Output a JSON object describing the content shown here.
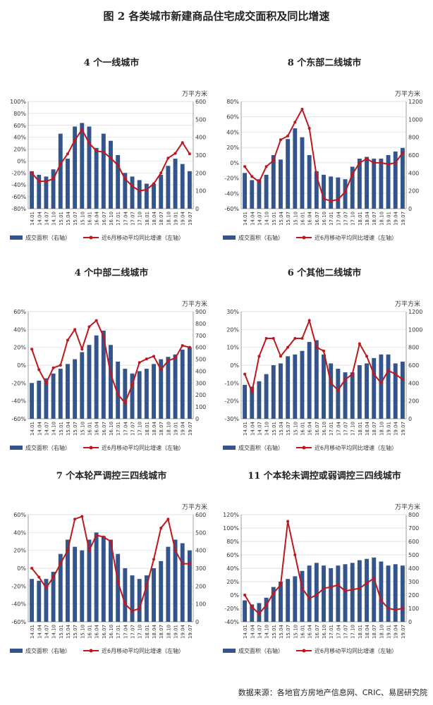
{
  "figure": {
    "title": "图 2   各类城市新建商品住宅成交面积及同比增速",
    "source": "数据来源：各地官方房地产信息网、CRIC、易居研究院"
  },
  "x_ticks": [
    "14.01",
    "14.04",
    "14.07",
    "14.10",
    "15.01",
    "15.04",
    "15.07",
    "15.10",
    "16.01",
    "16.04",
    "16.07",
    "16.10",
    "17.01",
    "17.04",
    "17.07",
    "17.10",
    "18.01",
    "18.04",
    "18.07",
    "18.10",
    "19.01",
    "19.04",
    "19.07"
  ],
  "legend": {
    "bar": "成交面积（右轴）",
    "line": "近6月移动平均同比增速（左轴）"
  },
  "right_unit": "万平方米",
  "colors": {
    "bar": "#34558b",
    "line": "#c0161e",
    "grid": "#d9d9d9"
  },
  "chart_data": [
    {
      "type": "bar+line",
      "title": "4 个一线城市",
      "x": [
        "14.01",
        "14.04",
        "14.07",
        "14.10",
        "15.01",
        "15.04",
        "15.07",
        "15.10",
        "16.01",
        "16.04",
        "16.07",
        "16.10",
        "17.01",
        "17.04",
        "17.07",
        "17.10",
        "18.01",
        "18.04",
        "18.07",
        "18.10",
        "19.01",
        "19.04",
        "19.07"
      ],
      "bar_values": [
        210,
        190,
        180,
        220,
        420,
        280,
        460,
        480,
        460,
        340,
        420,
        380,
        300,
        200,
        180,
        160,
        140,
        140,
        190,
        240,
        280,
        250,
        210
      ],
      "line_values": [
        -20,
        -34,
        -34,
        -30,
        -5,
        12,
        35,
        53,
        30,
        17,
        15,
        5,
        -7,
        -30,
        -42,
        -50,
        -48,
        -38,
        -20,
        5,
        13,
        31,
        12
      ],
      "ylim_left": [
        -80,
        100
      ],
      "ylim_right": [
        0,
        600
      ],
      "left_ticks": [
        "-80%",
        "-60%",
        "-40%",
        "-20%",
        "0%",
        "20%",
        "40%",
        "60%",
        "80%",
        "100%"
      ],
      "right_ticks": [
        "0",
        "100",
        "200",
        "300",
        "400",
        "500",
        "600"
      ]
    },
    {
      "type": "bar+line",
      "title": "8 个东部二线城市",
      "x": [
        "14.01",
        "14.04",
        "14.07",
        "14.10",
        "15.01",
        "15.04",
        "15.07",
        "15.10",
        "16.01",
        "16.04",
        "16.07",
        "16.10",
        "17.01",
        "17.04",
        "17.07",
        "17.10",
        "18.01",
        "18.04",
        "18.07",
        "18.10",
        "19.01",
        "19.04",
        "19.07"
      ],
      "bar_values": [
        400,
        320,
        330,
        380,
        600,
        550,
        780,
        900,
        800,
        600,
        420,
        380,
        360,
        350,
        330,
        470,
        560,
        580,
        560,
        560,
        600,
        640,
        680
      ],
      "line_values": [
        -5,
        -18,
        -25,
        -5,
        3,
        30,
        35,
        53,
        70,
        45,
        -17,
        -47,
        -50,
        -48,
        -38,
        -15,
        0,
        5,
        0,
        0,
        -2,
        0,
        13
      ],
      "ylim_left": [
        -60,
        80
      ],
      "ylim_right": [
        0,
        1200
      ],
      "left_ticks": [
        "-60%",
        "-40%",
        "-20%",
        "0%",
        "20%",
        "40%",
        "60%",
        "80%"
      ],
      "right_ticks": [
        "0",
        "200",
        "400",
        "600",
        "800",
        "1000",
        "1200"
      ]
    },
    {
      "type": "bar+line",
      "title": "4 个中部二线城市",
      "x": [
        "14.01",
        "14.04",
        "14.07",
        "14.10",
        "15.01",
        "15.04",
        "15.07",
        "15.10",
        "16.01",
        "16.04",
        "16.07",
        "16.10",
        "17.01",
        "17.04",
        "17.07",
        "17.10",
        "18.01",
        "18.04",
        "18.07",
        "18.10",
        "19.01",
        "19.04",
        "19.07"
      ],
      "bar_values": [
        300,
        320,
        340,
        380,
        420,
        460,
        500,
        560,
        620,
        700,
        740,
        620,
        480,
        420,
        380,
        400,
        420,
        460,
        500,
        520,
        540,
        580,
        600
      ],
      "line_values": [
        18,
        -5,
        -20,
        -3,
        0,
        28,
        40,
        18,
        43,
        50,
        32,
        -10,
        -33,
        -42,
        -22,
        3,
        7,
        10,
        -5,
        5,
        8,
        22,
        20
      ],
      "ylim_left": [
        -60,
        60
      ],
      "ylim_right": [
        0,
        900
      ],
      "left_ticks": [
        "-60%",
        "-40%",
        "-20%",
        "0%",
        "20%",
        "40%",
        "60%"
      ],
      "right_ticks": [
        "0",
        "100",
        "200",
        "300",
        "400",
        "500",
        "600",
        "700",
        "800",
        "900"
      ]
    },
    {
      "type": "bar+line",
      "title": "6 个其他二线城市",
      "x": [
        "14.01",
        "14.04",
        "14.07",
        "14.10",
        "15.01",
        "15.04",
        "15.07",
        "15.10",
        "16.01",
        "16.04",
        "16.07",
        "16.10",
        "17.01",
        "17.04",
        "17.07",
        "17.10",
        "18.01",
        "18.04",
        "18.07",
        "18.10",
        "19.01",
        "19.04",
        "19.07"
      ],
      "bar_values": [
        380,
        360,
        420,
        500,
        600,
        620,
        700,
        720,
        760,
        860,
        880,
        720,
        620,
        560,
        520,
        520,
        600,
        620,
        680,
        720,
        720,
        620,
        640
      ],
      "line_values": [
        -5,
        -15,
        5,
        15,
        15,
        5,
        10,
        15,
        15,
        25,
        10,
        8,
        -10,
        -14,
        -8,
        -5,
        12,
        5,
        -5,
        -10,
        -3,
        -5,
        -8
      ],
      "ylim_left": [
        -30,
        30
      ],
      "ylim_right": [
        0,
        1200
      ],
      "left_ticks": [
        "-30%",
        "-20%",
        "-10%",
        "0%",
        "10%",
        "20%",
        "30%"
      ],
      "right_ticks": [
        "0",
        "200",
        "400",
        "600",
        "800",
        "1000",
        "1200"
      ]
    },
    {
      "type": "bar+line",
      "title": "7 个本轮严调控三四线城市",
      "x": [
        "14.01",
        "14.04",
        "14.07",
        "14.10",
        "15.01",
        "15.04",
        "15.07",
        "15.10",
        "16.01",
        "16.04",
        "16.07",
        "16.10",
        "17.01",
        "17.04",
        "17.07",
        "17.10",
        "18.01",
        "18.04",
        "18.07",
        "18.10",
        "19.01",
        "19.04",
        "19.07"
      ],
      "bar_values": [
        240,
        230,
        240,
        280,
        380,
        460,
        420,
        400,
        460,
        500,
        480,
        460,
        380,
        300,
        260,
        240,
        260,
        300,
        340,
        420,
        460,
        440,
        400
      ],
      "line_values": [
        0,
        -10,
        -22,
        -10,
        5,
        20,
        55,
        58,
        20,
        37,
        35,
        30,
        -15,
        -40,
        -48,
        -45,
        -20,
        10,
        45,
        55,
        20,
        5,
        5
      ],
      "ylim_left": [
        -60,
        60
      ],
      "ylim_right": [
        0,
        600
      ],
      "left_ticks": [
        "-60%",
        "-40%",
        "-20%",
        "0%",
        "20%",
        "40%",
        "60%"
      ],
      "right_ticks": [
        "0",
        "100",
        "200",
        "300",
        "400",
        "500",
        "600"
      ]
    },
    {
      "type": "bar+line",
      "title": "11 个本轮未调控或弱调控三四线城市",
      "x": [
        "14.01",
        "14.04",
        "14.07",
        "14.10",
        "15.01",
        "15.04",
        "15.07",
        "15.10",
        "16.01",
        "16.04",
        "16.07",
        "16.10",
        "17.01",
        "17.04",
        "17.07",
        "17.10",
        "18.01",
        "18.04",
        "18.07",
        "18.10",
        "19.01",
        "19.04",
        "19.07"
      ],
      "bar_values": [
        160,
        130,
        140,
        180,
        260,
        300,
        320,
        340,
        380,
        420,
        440,
        420,
        400,
        420,
        430,
        440,
        460,
        470,
        480,
        450,
        420,
        430,
        420
      ],
      "line_values": [
        0,
        -18,
        -28,
        -15,
        3,
        15,
        110,
        60,
        10,
        -5,
        0,
        10,
        12,
        15,
        6,
        8,
        10,
        18,
        25,
        -8,
        -20,
        -22,
        -20
      ],
      "ylim_left": [
        -40,
        120
      ],
      "ylim_right": [
        0,
        800
      ],
      "left_ticks": [
        "-40%",
        "-20%",
        "0%",
        "20%",
        "40%",
        "60%",
        "80%",
        "100%",
        "120%"
      ],
      "right_ticks": [
        "0",
        "100",
        "200",
        "300",
        "400",
        "500",
        "600",
        "700",
        "800"
      ]
    }
  ]
}
